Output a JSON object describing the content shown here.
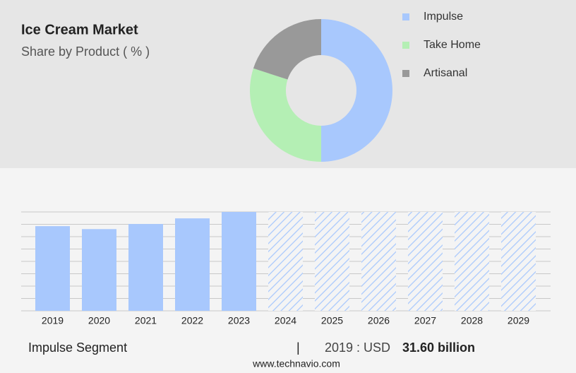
{
  "chart_data": [
    {
      "type": "pie",
      "title": "Ice Cream Market",
      "subtitle": "Share by Product ( % )",
      "categories": [
        "Impulse",
        "Take Home",
        "Artisanal"
      ],
      "values": [
        50,
        30,
        20
      ],
      "colors": [
        "#a8c8fd",
        "#b4efb4",
        "#999999"
      ],
      "legend": "right"
    },
    {
      "type": "bar",
      "categories": [
        "2019",
        "2020",
        "2021",
        "2022",
        "2023",
        "2024",
        "2025",
        "2026",
        "2027",
        "2028",
        "2029"
      ],
      "values": [
        31.6,
        30.5,
        32.4,
        34.5,
        36.9,
        null,
        null,
        null,
        null,
        null,
        null
      ],
      "color": "#a8c8fd",
      "ylim": [
        0,
        36.9
      ],
      "grid": true
    }
  ],
  "footer": {
    "segment": "Impulse Segment",
    "separator": "|",
    "year_label": "2019 : USD",
    "value": "31.60 billion",
    "source": "www.technavio.com"
  }
}
